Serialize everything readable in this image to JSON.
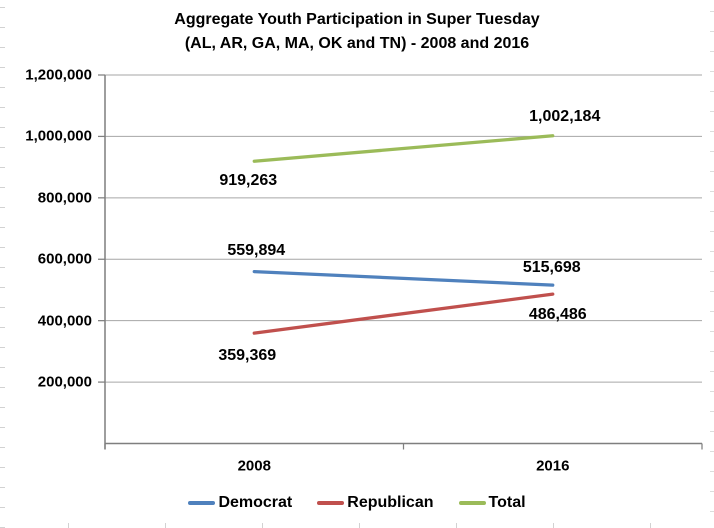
{
  "chart_title": {
    "line1": "Aggregate Youth Participation in Super Tuesday",
    "line2": "(AL, AR, GA, MA, OK and TN) - 2008 and 2016"
  },
  "chart_data": {
    "type": "line",
    "title": "Aggregate Youth Participation in Super Tuesday (AL, AR, GA, MA, OK and TN) - 2008 and 2016",
    "categories": [
      "2008",
      "2016"
    ],
    "series": [
      {
        "name": "Democrat",
        "color": "#4F81BD",
        "values": [
          559894,
          515698
        ],
        "labels": [
          "559,894",
          "515,698"
        ]
      },
      {
        "name": "Republican",
        "color": "#C0504D",
        "values": [
          359369,
          486486
        ],
        "labels": [
          "359,369",
          "486,486"
        ]
      },
      {
        "name": "Total",
        "color": "#9BBB59",
        "values": [
          919263,
          1002184
        ],
        "labels": [
          "919,263",
          "1,002,184"
        ]
      }
    ],
    "ylim": [
      0,
      1200000
    ],
    "ytick_step": 200000,
    "ytick_labels": [
      "200,000",
      "400,000",
      "600,000",
      "800,000",
      "1,000,000",
      "1,200,000"
    ],
    "zero_tick_label_hidden": true,
    "grid": "horizontal",
    "legend_position": "bottom",
    "legend_entries": [
      "Democrat",
      "Republican",
      "Total"
    ],
    "axis_color": "#7F7F7F",
    "gridline_color": "#A6A6A6",
    "text_color": "#000000",
    "background_color": "#FFFFFF"
  }
}
